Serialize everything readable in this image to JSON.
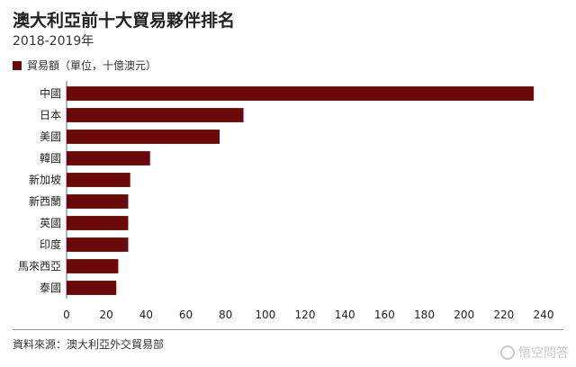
{
  "colors": {
    "bar": "#6b0a0a",
    "axis": "#666666",
    "text": "#222222"
  },
  "source": "資料來源：澳大利亞外交貿易部",
  "watermark": "悟空問答",
  "chart_data": {
    "type": "bar",
    "orientation": "horizontal",
    "title": "澳大利亞前十大貿易夥伴排名",
    "subtitle": "2018-2019年",
    "xlabel": "",
    "ylabel": "",
    "legend": {
      "position": "top-left"
    },
    "grid": false,
    "xlim": [
      0,
      240
    ],
    "xticks": [
      0,
      20,
      40,
      60,
      80,
      100,
      120,
      140,
      160,
      180,
      200,
      220,
      240
    ],
    "categories": [
      "中國",
      "日本",
      "美國",
      "韓國",
      "新加坡",
      "新西蘭",
      "英國",
      "印度",
      "馬來西亞",
      "泰國"
    ],
    "series": [
      {
        "name": "貿易額（單位，十億澳元）",
        "values": [
          235,
          89,
          77,
          42,
          32,
          31,
          31,
          31,
          26,
          25
        ]
      }
    ]
  }
}
